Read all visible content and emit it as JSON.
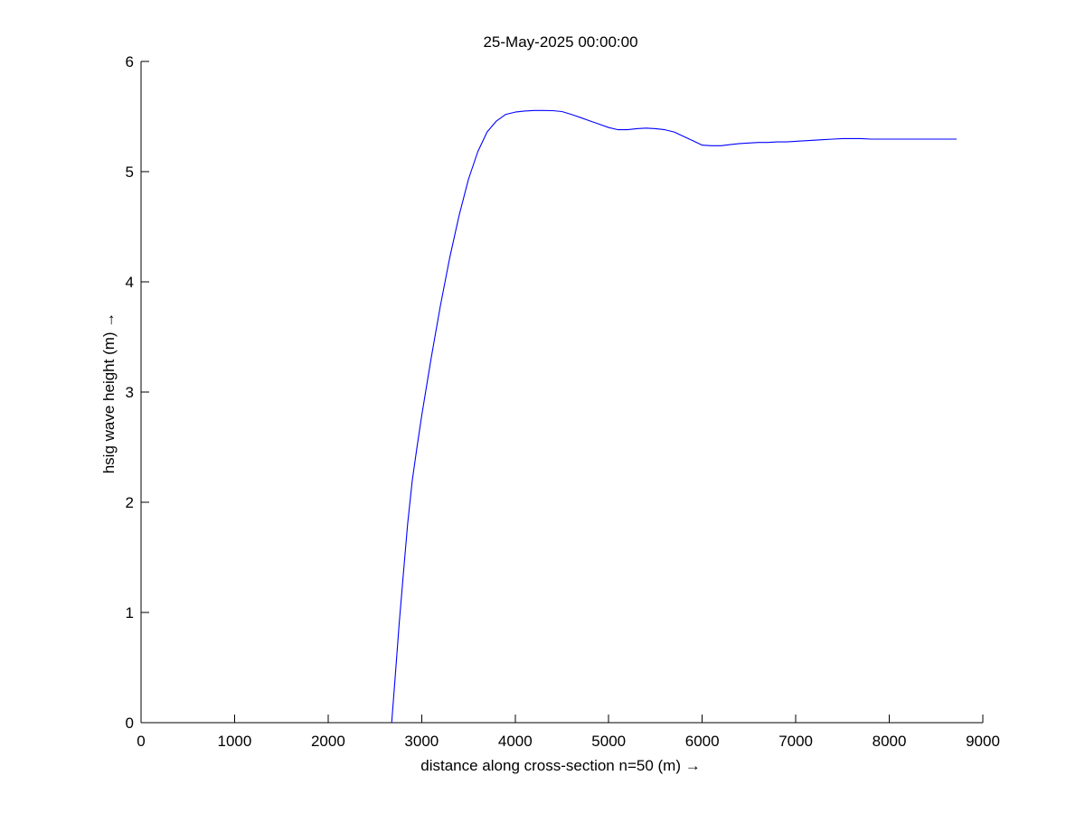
{
  "chart_data": {
    "type": "line",
    "title": "25-May-2025 00:00:00",
    "xlabel": "distance along cross-section n=50 (m) →",
    "ylabel": "hsig wave height (m) →",
    "xlim": [
      0,
      9000
    ],
    "ylim": [
      0,
      6
    ],
    "xticks": [
      0,
      1000,
      2000,
      3000,
      4000,
      5000,
      6000,
      7000,
      8000,
      9000
    ],
    "yticks": [
      0,
      1,
      2,
      3,
      4,
      5,
      6
    ],
    "grid": false,
    "line_color": "#0000ff",
    "series": [
      {
        "name": "hsig",
        "x": [
          2680,
          2720,
          2760,
          2800,
          2850,
          2900,
          2950,
          3000,
          3100,
          3200,
          3300,
          3400,
          3500,
          3600,
          3700,
          3800,
          3900,
          4000,
          4100,
          4200,
          4300,
          4400,
          4500,
          4600,
          4700,
          4800,
          4900,
          5000,
          5100,
          5200,
          5300,
          5400,
          5500,
          5600,
          5700,
          5800,
          5900,
          6000,
          6100,
          6200,
          6300,
          6400,
          6500,
          6600,
          6700,
          6800,
          6900,
          7000,
          7100,
          7200,
          7300,
          7400,
          7500,
          7600,
          7700,
          7800,
          7900,
          8000,
          8100,
          8200,
          8300,
          8400,
          8500,
          8600,
          8720
        ],
        "y": [
          0.0,
          0.45,
          0.9,
          1.3,
          1.8,
          2.2,
          2.5,
          2.78,
          3.3,
          3.78,
          4.22,
          4.6,
          4.93,
          5.18,
          5.36,
          5.46,
          5.52,
          5.54,
          5.55,
          5.555,
          5.555,
          5.553,
          5.545,
          5.52,
          5.49,
          5.46,
          5.43,
          5.4,
          5.38,
          5.38,
          5.39,
          5.395,
          5.39,
          5.38,
          5.36,
          5.32,
          5.28,
          5.24,
          5.235,
          5.235,
          5.245,
          5.255,
          5.26,
          5.265,
          5.265,
          5.27,
          5.27,
          5.275,
          5.28,
          5.285,
          5.29,
          5.295,
          5.3,
          5.3,
          5.3,
          5.295,
          5.295,
          5.295,
          5.295,
          5.295,
          5.295,
          5.295,
          5.295,
          5.295,
          5.295
        ]
      }
    ]
  }
}
